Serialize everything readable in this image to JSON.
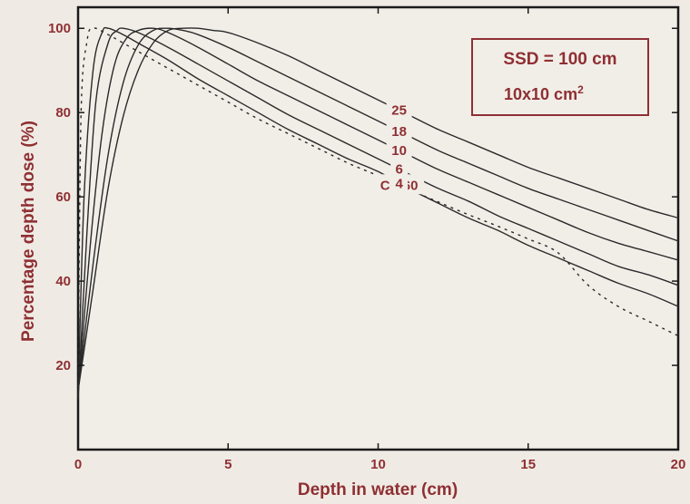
{
  "chart_data": {
    "type": "line",
    "title": "",
    "xlabel": "Depth in water (cm)",
    "ylabel": "Percentage depth dose  (%)",
    "xlim": [
      0,
      20
    ],
    "ylim": [
      0,
      105
    ],
    "x_ticks": [
      0,
      5,
      10,
      15,
      20
    ],
    "x_tick_labels": [
      "0",
      "5",
      "10",
      "15",
      "20"
    ],
    "y_ticks": [
      20,
      40,
      60,
      80,
      100
    ],
    "y_tick_labels": [
      "20",
      "40",
      "60",
      "80",
      "100"
    ],
    "grid": false,
    "legend": "none",
    "annotation_box": {
      "line1": "SSD = 100 cm",
      "line2_base": "10x10 cm",
      "line2_sup": "2"
    },
    "series": [
      {
        "name": "Co-60",
        "style": "dashed",
        "x": [
          0,
          0.1,
          0.3,
          0.5,
          1,
          2,
          3,
          4,
          5,
          6,
          7,
          8,
          9,
          10,
          11,
          12,
          13,
          14,
          15,
          16,
          17,
          18,
          19,
          20
        ],
        "y": [
          15,
          80,
          97,
          100,
          98.5,
          94.5,
          90.5,
          86.5,
          82.5,
          78.5,
          75,
          71.5,
          68,
          65,
          61.8,
          58.8,
          55.8,
          53,
          50,
          46.7,
          39,
          34,
          30.5,
          27
        ]
      },
      {
        "name": "4",
        "style": "solid",
        "x": [
          0,
          0.2,
          0.5,
          0.8,
          1,
          1.5,
          2,
          3,
          4,
          5,
          6,
          7,
          8,
          9,
          10,
          11,
          12,
          13,
          14,
          15,
          16,
          17,
          18,
          19,
          20
        ],
        "y": [
          12,
          60,
          90,
          99,
          100,
          98.5,
          96.5,
          92.5,
          88,
          84,
          80,
          76,
          72.5,
          69,
          66,
          62,
          58.5,
          55,
          52,
          48.5,
          45.5,
          42.5,
          39.5,
          37,
          34
        ]
      },
      {
        "name": "6",
        "style": "solid",
        "x": [
          0,
          0.3,
          0.6,
          1,
          1.3,
          1.5,
          2,
          3,
          4,
          5,
          6,
          7,
          8,
          9,
          10,
          11,
          12,
          13,
          14,
          15,
          16,
          17,
          18,
          19,
          20
        ],
        "y": [
          12,
          52,
          83,
          96.5,
          99.5,
          100,
          99,
          95.5,
          91.5,
          87.5,
          83.5,
          79.5,
          76,
          72.5,
          69,
          65.5,
          62,
          59,
          55.5,
          52.5,
          49.5,
          46.5,
          43.5,
          41.5,
          39
        ]
      },
      {
        "name": "10",
        "style": "solid",
        "x": [
          0,
          0.4,
          0.8,
          1.2,
          1.6,
          2,
          2.5,
          3,
          4,
          5,
          6,
          7,
          8,
          9,
          10,
          11,
          12,
          13,
          14,
          15,
          16,
          17,
          18,
          19,
          20
        ],
        "y": [
          13,
          48,
          75,
          91,
          97.5,
          99.5,
          100,
          99,
          95.5,
          91.5,
          87.5,
          84,
          80.5,
          77,
          73.5,
          70,
          66.5,
          63.5,
          60.5,
          57.5,
          54.5,
          51.5,
          49,
          47,
          45
        ]
      },
      {
        "name": "18",
        "style": "solid",
        "x": [
          0,
          0.5,
          1,
          1.5,
          2,
          2.5,
          3,
          3.5,
          4,
          5,
          6,
          7,
          8,
          9,
          10,
          11,
          12,
          13,
          14,
          15,
          16,
          17,
          18,
          19,
          20
        ],
        "y": [
          14,
          44,
          70,
          87,
          96,
          99.5,
          100,
          99.5,
          98.5,
          95.5,
          92,
          88.5,
          85,
          81.5,
          78,
          74.5,
          71,
          68,
          65,
          62,
          59.5,
          57,
          54.5,
          52,
          49.5
        ]
      },
      {
        "name": "25",
        "style": "solid",
        "x": [
          0,
          0.5,
          1,
          1.5,
          2,
          2.5,
          3,
          3.5,
          4,
          4.5,
          5,
          6,
          7,
          8,
          9,
          10,
          11,
          12,
          13,
          14,
          15,
          16,
          17,
          18,
          19,
          20
        ],
        "y": [
          14,
          38,
          62,
          79,
          90,
          96.5,
          99.5,
          100,
          100,
          99.5,
          99,
          96.5,
          93.5,
          90,
          86.5,
          83,
          79.5,
          76,
          73,
          70,
          67,
          64.5,
          62,
          59.5,
          57,
          55
        ]
      }
    ]
  },
  "colors": {
    "background": "#efebe4",
    "plot_background": "#f1eee8",
    "text_accent": "#8f2f33",
    "axes": "#1a1a1a",
    "curves": "#2a2a2a"
  }
}
